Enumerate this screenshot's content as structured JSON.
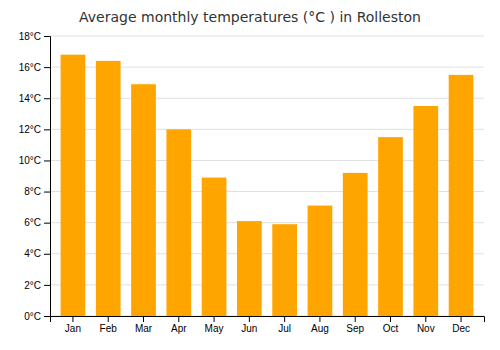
{
  "chart_data": {
    "type": "bar",
    "title": "Average monthly temperatures (°C ) in Rolleston",
    "categories": [
      "Jan",
      "Feb",
      "Mar",
      "Apr",
      "May",
      "Jun",
      "Jul",
      "Aug",
      "Sep",
      "Oct",
      "Nov",
      "Dec"
    ],
    "values": [
      16.8,
      16.4,
      14.9,
      12.0,
      8.9,
      6.1,
      5.9,
      7.1,
      9.2,
      11.5,
      13.5,
      15.5
    ],
    "color": "#FFA500",
    "ylim": [
      0,
      18
    ],
    "yticks": [
      {
        "value": 0,
        "label": "0°C"
      },
      {
        "value": 2,
        "label": "2°C"
      },
      {
        "value": 4,
        "label": "4°C"
      },
      {
        "value": 6,
        "label": "6°C"
      },
      {
        "value": 8,
        "label": "8°C"
      },
      {
        "value": 10,
        "label": "10°C"
      },
      {
        "value": 12,
        "label": "12°C"
      },
      {
        "value": 14,
        "label": "14°C"
      },
      {
        "value": 16,
        "label": "16°C"
      },
      {
        "value": 18,
        "label": "18°C"
      }
    ],
    "grid": true
  }
}
